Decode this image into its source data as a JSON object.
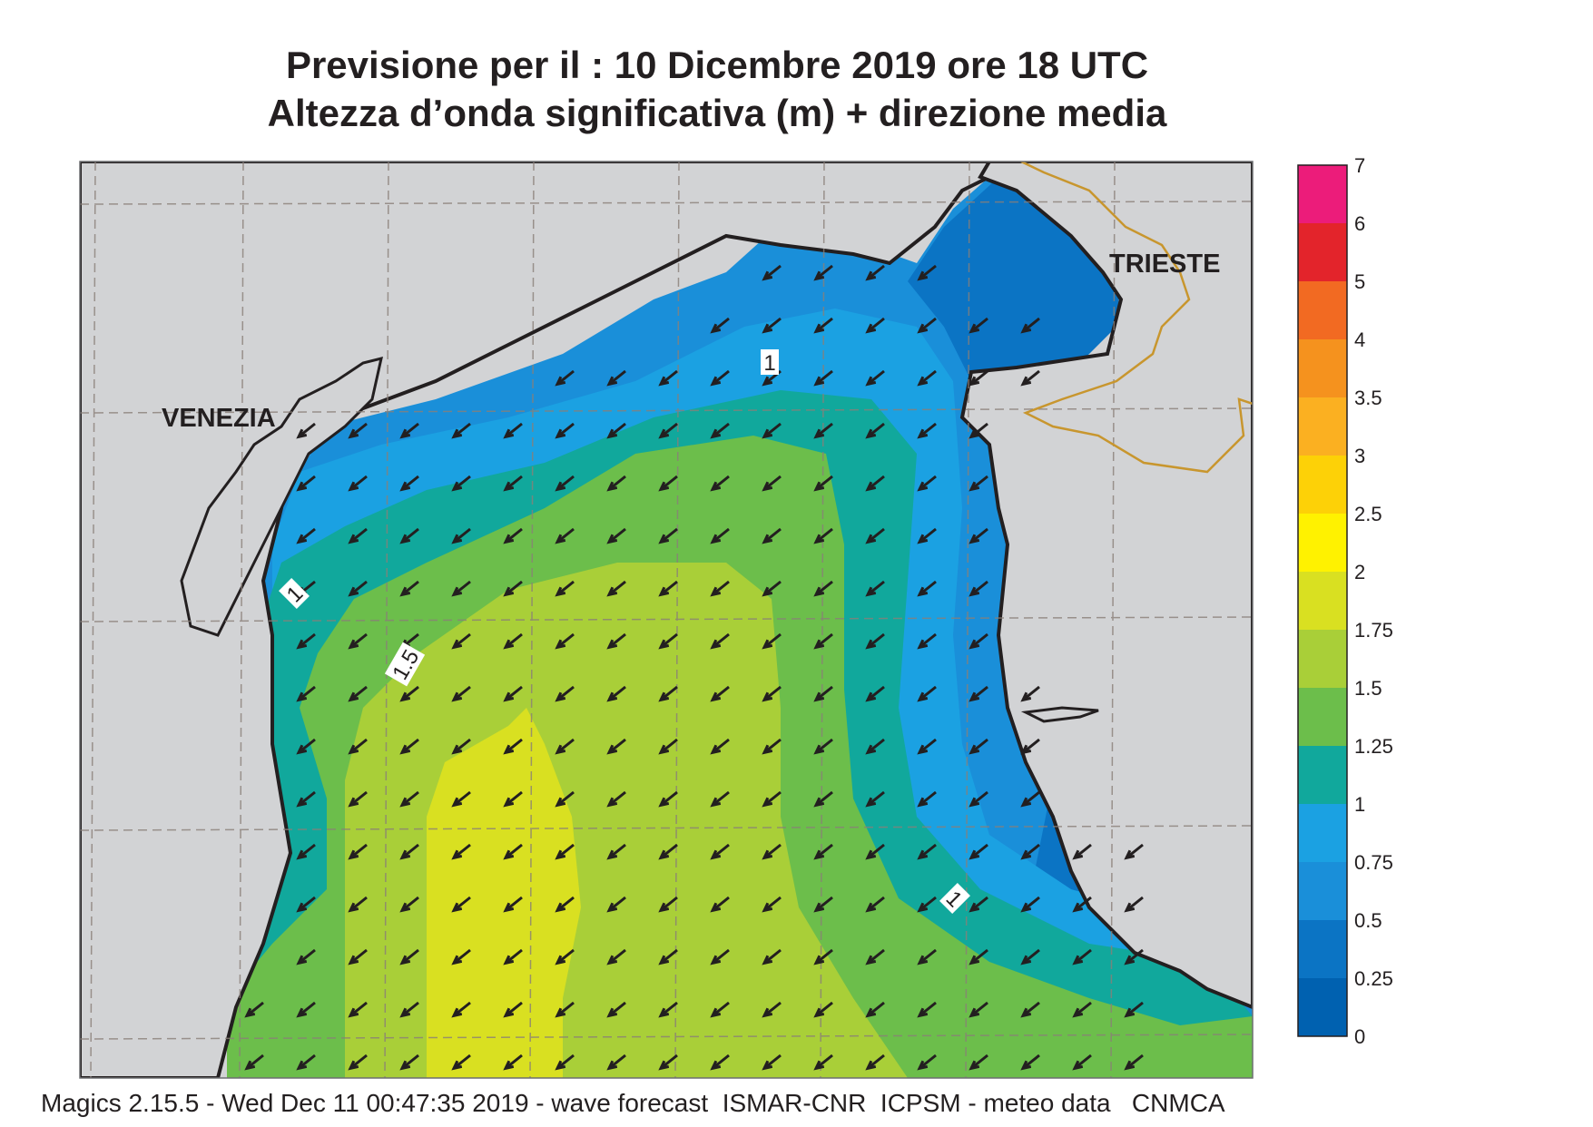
{
  "header": {
    "title_line1": "Previsione per il  :  10 Dicembre  2019   ore 18 UTC",
    "title_line2": "Altezza d’onda significativa (m) + direzione media"
  },
  "map": {
    "place_labels": [
      "VENEZIA",
      "TRIESTE"
    ],
    "contour_labels": [
      "1",
      "1",
      "1.5",
      "1"
    ],
    "land_color": "#d2d3d5",
    "coast_color": "#231f20",
    "border_color": "#c8962e",
    "arrow_direction": "south-west"
  },
  "legend": {
    "ticks": [
      "7",
      "6",
      "5",
      "4",
      "3.5",
      "3",
      "2.5",
      "2",
      "1.75",
      "1.5",
      "1.25",
      "1",
      "0.75",
      "0.5",
      "0.25",
      "0"
    ],
    "colors": [
      "#ec1c7a",
      "#e3242b",
      "#f26a22",
      "#f5921e",
      "#fbb021",
      "#fdd107",
      "#fff200",
      "#d9e021",
      "#a9cf38",
      "#6cbe4b",
      "#11a89c",
      "#1ba1e2",
      "#1a8fd9",
      "#0b74c4",
      "#0061b0"
    ]
  },
  "footer": {
    "text": "Magics 2.15.5 - Wed Dec 11 00:47:35 2019 - wave forecast  ISMAR-CNR  ICPSM - meteo data   CNMCA"
  }
}
